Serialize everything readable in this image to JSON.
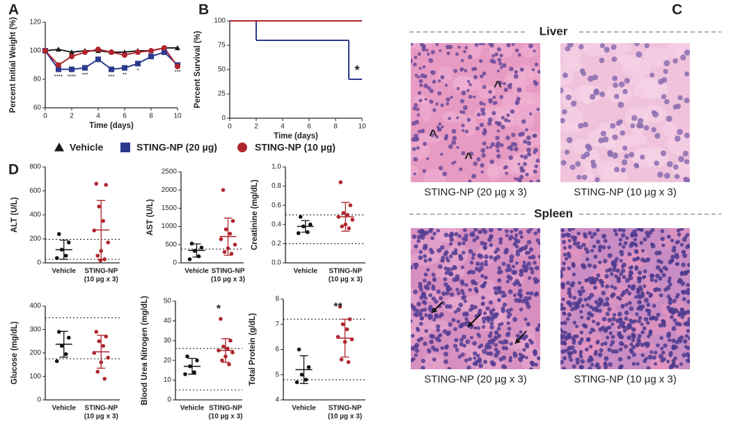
{
  "panels": [
    "A",
    "B",
    "C",
    "D"
  ],
  "chart_data": [
    {
      "type": "line",
      "xlabel": "Time (days)",
      "ylabel": "Percent Initial Weight (%)",
      "x": [
        0,
        1,
        2,
        3,
        4,
        5,
        6,
        7,
        8,
        9,
        10
      ],
      "xlim": [
        0,
        10
      ],
      "xticks": [
        0,
        2,
        4,
        6,
        8,
        10
      ],
      "ylim": [
        60,
        120
      ],
      "yticks": [
        60,
        80,
        100,
        120
      ],
      "series": [
        {
          "name": "Vehicle",
          "color": "#1a1a1a",
          "marker": "triangle",
          "values": [
            100,
            101,
            99,
            100,
            100,
            99,
            99,
            100,
            100,
            102,
            102
          ]
        },
        {
          "name": "STING-NP (20 µg)",
          "color": "#2b3a8f",
          "marker": "square",
          "values": [
            100,
            87,
            87,
            88,
            94,
            87,
            88,
            91,
            96,
            99,
            90
          ]
        },
        {
          "name": "STING-NP (10 µg)",
          "color": "#b0252d",
          "marker": "circle",
          "values": [
            100,
            90,
            96,
            99,
            101,
            99,
            97,
            99,
            100,
            102,
            89
          ]
        }
      ],
      "annotations": [
        {
          "x": 1,
          "text": "****"
        },
        {
          "x": 2,
          "text": "****"
        },
        {
          "x": 3,
          "text": "***"
        },
        {
          "x": 5,
          "text": "***"
        },
        {
          "x": 6,
          "text": "**"
        },
        {
          "x": 7,
          "text": "*"
        },
        {
          "x": 10,
          "text": "***"
        }
      ]
    },
    {
      "type": "step",
      "xlabel": "Time (days)",
      "ylabel": "Percent Survival (%)",
      "x": [
        0,
        2,
        9,
        10
      ],
      "xlim": [
        0,
        10
      ],
      "xticks": [
        0,
        2,
        4,
        6,
        8,
        10
      ],
      "ylim": [
        0,
        100
      ],
      "yticks": [
        0,
        25,
        50,
        75,
        100
      ],
      "series": [
        {
          "color": "#2b3a8f",
          "values": [
            100,
            80,
            40,
            40
          ]
        },
        {
          "color": "#b0252d",
          "values": [
            100,
            100,
            100,
            100
          ]
        }
      ],
      "annotation": "*"
    },
    {
      "type": "dot",
      "ylabel": "ALT (U/L)",
      "categories": [
        [
          "Vehicle"
        ],
        [
          "STING-NP",
          "(10 µg x 3)"
        ]
      ],
      "ylim": [
        0,
        800
      ],
      "yticks": [
        0,
        200,
        400,
        600,
        800
      ],
      "reference_lines": [
        195,
        30
      ],
      "groups": [
        {
          "color": "#111111",
          "values": [
            240,
            170,
            110,
            60,
            40
          ],
          "mean": 110,
          "sd": 80
        },
        {
          "color": "#b0252d",
          "values": [
            660,
            650,
            470,
            350,
            270,
            170,
            100,
            60,
            30,
            20
          ],
          "mean": 275,
          "sd": 245
        }
      ]
    },
    {
      "type": "dot",
      "ylabel": "AST (U/L)",
      "categories": [
        [
          "Vehicle"
        ],
        [
          "STING-NP",
          "(10 µg x 3)"
        ]
      ],
      "ylim": [
        0,
        2500
      ],
      "yticks": [
        0,
        500,
        1000,
        1500,
        2000,
        2500
      ],
      "reference_lines": [
        380
      ],
      "groups": [
        {
          "color": "#111111",
          "values": [
            530,
            420,
            330,
            180,
            100
          ],
          "mean": 340,
          "sd": 180
        },
        {
          "color": "#b0252d",
          "values": [
            2000,
            1150,
            920,
            800,
            650,
            500,
            400,
            300,
            250
          ],
          "mean": 720,
          "sd": 510
        }
      ]
    },
    {
      "type": "dot",
      "ylabel": "Creatinine (mg/dL)",
      "categories": [
        [
          "Vehicle"
        ],
        [
          "STING-NP",
          "(10 µg x 3)"
        ]
      ],
      "ylim": [
        0,
        1
      ],
      "yticks": [
        {
          "value": 0,
          "label": "0.0"
        },
        0.2,
        0.4,
        0.6,
        0.8,
        {
          "value": 1,
          "label": "1.0"
        }
      ],
      "reference_lines": [
        0.5,
        0.2
      ],
      "groups": [
        {
          "color": "#111111",
          "values": [
            0.48,
            0.4,
            0.38,
            0.32,
            0.31
          ],
          "mean": 0.38,
          "sd": 0.06
        },
        {
          "color": "#b0252d",
          "values": [
            0.84,
            0.6,
            0.52,
            0.5,
            0.48,
            0.45,
            0.4,
            0.38,
            0.36
          ],
          "mean": 0.48,
          "sd": 0.15
        }
      ]
    },
    {
      "type": "dot",
      "ylabel": "Glucose (mg/dL)",
      "categories": [
        [
          "Vehicle"
        ],
        [
          "STING-NP",
          "(10 µg x 3)"
        ]
      ],
      "ylim": [
        0,
        400
      ],
      "yticks": [
        0,
        100,
        200,
        300,
        400
      ],
      "reference_lines": [
        350,
        175
      ],
      "groups": [
        {
          "color": "#111111",
          "values": [
            290,
            265,
            230,
            195,
            165
          ],
          "mean": 237,
          "sd": 55
        },
        {
          "color": "#b0252d",
          "values": [
            290,
            270,
            250,
            230,
            200,
            180,
            160,
            120,
            90
          ],
          "mean": 205,
          "sd": 70
        }
      ]
    },
    {
      "type": "dot",
      "ylabel": "Blood Urea Nitrogen (mg/dL)",
      "categories": [
        [
          "Vehicle"
        ],
        [
          "STING-NP",
          "(10 µg x 3)"
        ]
      ],
      "ylim": [
        0,
        50
      ],
      "yticks": [
        0,
        10,
        20,
        30,
        40,
        50
      ],
      "reference_lines": [
        26,
        5
      ],
      "significance": "*",
      "groups": [
        {
          "color": "#111111",
          "values": [
            22,
            20,
            17,
            14,
            13
          ],
          "mean": 17,
          "sd": 4
        },
        {
          "color": "#b0252d",
          "values": [
            41,
            30,
            27,
            26,
            25,
            24,
            22,
            20,
            18
          ],
          "mean": 25,
          "sd": 6
        }
      ]
    },
    {
      "type": "dot",
      "ylabel": "Total Protein (g/dL)",
      "categories": [
        [
          "Vehicle"
        ],
        [
          "STING-NP",
          "(10 µg x 3)"
        ]
      ],
      "ylim": [
        4,
        8
      ],
      "yticks": [
        4,
        5,
        6,
        7,
        8
      ],
      "reference_lines": [
        7.2,
        4.8
      ],
      "significance": "**",
      "groups": [
        {
          "color": "#111111",
          "values": [
            6.0,
            5.3,
            5.0,
            4.8,
            4.7
          ],
          "mean": 5.2,
          "sd": 0.55
        },
        {
          "color": "#b0252d",
          "values": [
            7.7,
            7.2,
            7.0,
            6.8,
            6.5,
            6.4,
            6.3,
            5.6,
            5.5
          ],
          "mean": 6.45,
          "sd": 0.75
        }
      ]
    }
  ],
  "histology": {
    "sections": [
      {
        "title": "Liver",
        "images": [
          {
            "caption": "STING-NP (20 µg x 3)",
            "marks": [
              "^",
              "^",
              "^"
            ]
          },
          {
            "caption": "STING-NP (10 µg x 3)",
            "marks": []
          }
        ]
      },
      {
        "title": "Spleen",
        "images": [
          {
            "caption": "STING-NP (20 µg x 3)",
            "marks": []
          },
          {
            "caption": "STING-NP (10 µg x 3)",
            "marks": []
          }
        ]
      }
    ]
  }
}
